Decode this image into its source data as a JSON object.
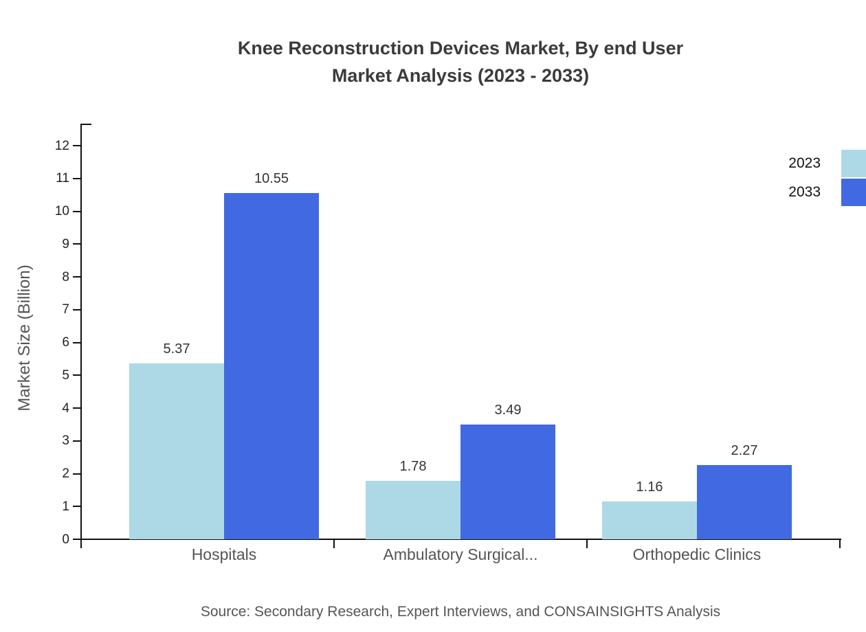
{
  "title": {
    "line1": "Knee Reconstruction Devices Market, By end User",
    "line2": "Market Analysis (2023 - 2033)"
  },
  "y_axis": {
    "label": "Market Size (Billion)",
    "ticks": [
      0,
      1,
      2,
      3,
      4,
      5,
      6,
      7,
      8,
      9,
      10,
      11,
      12
    ]
  },
  "legend": {
    "items": [
      {
        "label": "2023",
        "color": "#ADD8E6"
      },
      {
        "label": "2033",
        "color": "#4169E1"
      }
    ]
  },
  "source": "Source: Secondary Research, Expert Interviews, and CONSAINSIGHTS Analysis",
  "chart_data": {
    "type": "bar",
    "categories": [
      "Hospitals",
      "Ambulatory Surgical...",
      "Orthopedic Clinics"
    ],
    "series": [
      {
        "name": "2023",
        "color": "#ADD8E6",
        "values": [
          5.37,
          1.78,
          1.16
        ]
      },
      {
        "name": "2033",
        "color": "#4169E1",
        "values": [
          10.55,
          3.49,
          2.27
        ]
      }
    ],
    "title": "Knee Reconstruction Devices Market, By end User Market Analysis (2023 - 2033)",
    "xlabel": "",
    "ylabel": "Market Size (Billion)",
    "ylim": [
      0,
      12
    ],
    "ytick_step": 1,
    "grid": false,
    "legend_position": "top-right",
    "value_labels": true
  }
}
